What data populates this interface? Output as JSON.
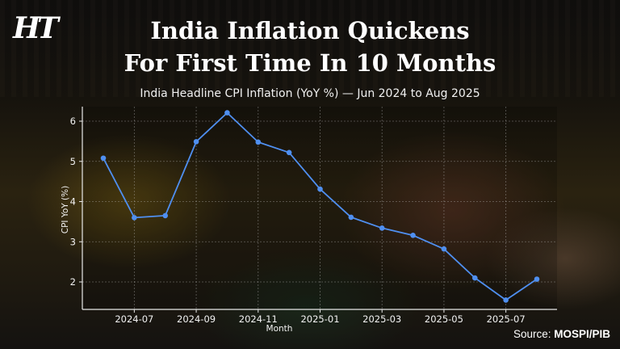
{
  "brand": {
    "logo_text": "HT"
  },
  "header": {
    "title_line1": "India Inflation Quickens",
    "title_line2": "For First Time In 10 Months"
  },
  "source": {
    "prefix": "Source:",
    "name": "MOSPI/PIB"
  },
  "colors": {
    "line": "#4f8ff0",
    "grid": "#bdbdbd",
    "axis": "#e8e8e8",
    "text": "#ffffff"
  },
  "chart_data": {
    "type": "line",
    "title": "India Headline CPI Inflation (YoY %) — Jun 2024 to Aug 2025",
    "xlabel": "Month",
    "ylabel": "CPI YoY (%)",
    "x": [
      "2024-06",
      "2024-07",
      "2024-08",
      "2024-09",
      "2024-10",
      "2024-11",
      "2024-12",
      "2025-01",
      "2025-02",
      "2025-03",
      "2025-04",
      "2025-05",
      "2025-06",
      "2025-07",
      "2025-08"
    ],
    "series": [
      {
        "name": "CPI YoY (%)",
        "values": [
          5.08,
          3.6,
          3.65,
          5.49,
          6.21,
          5.48,
          5.22,
          4.31,
          3.61,
          3.34,
          3.16,
          2.82,
          2.1,
          1.55,
          2.07
        ]
      }
    ],
    "x_ticks": [
      "2024-07",
      "2024-09",
      "2024-11",
      "2025-01",
      "2025-03",
      "2025-05",
      "2025-07"
    ],
    "y_ticks": [
      2,
      3,
      4,
      5,
      6
    ],
    "ylim": [
      1.3,
      6.6
    ],
    "grid": true,
    "legend": "none",
    "markers": true
  }
}
